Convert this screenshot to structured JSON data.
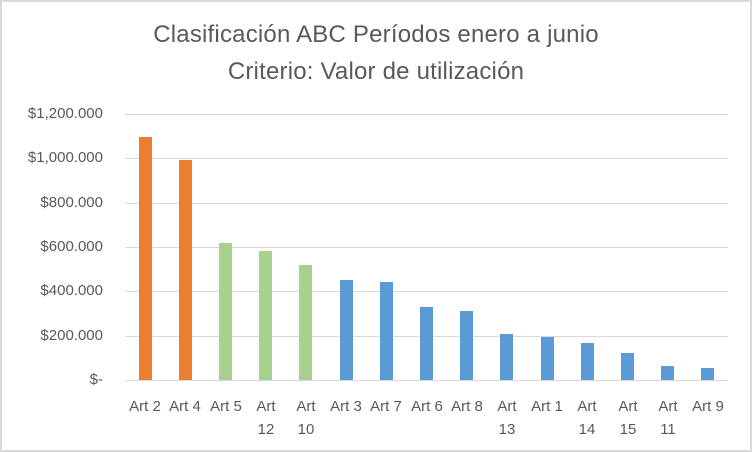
{
  "chart_data": {
    "type": "bar",
    "title": "Clasificación ABC Períodos enero a junio",
    "subtitle": "Criterio: Valor de utilización",
    "xlabel": "",
    "ylabel": "",
    "ylim": [
      0,
      1200000
    ],
    "grid": true,
    "legend": null,
    "yticks": [
      "$1,200.000",
      "$1,000.000",
      "$800.000",
      "$600.000",
      "$400.000",
      "$200.000",
      "$-"
    ],
    "categories": [
      "Art 2",
      "Art 4",
      "Art 5",
      "Art 12",
      "Art 10",
      "Art 3",
      "Art 7",
      "Art 6",
      "Art 8",
      "Art 13",
      "Art 1",
      "Art 14",
      "Art 15",
      "Art 11",
      "Art 9"
    ],
    "values": [
      1097000,
      993000,
      618000,
      582000,
      519000,
      451000,
      442000,
      330000,
      311000,
      207000,
      194000,
      167000,
      122000,
      63000,
      54000
    ],
    "classes": [
      "A",
      "A",
      "B",
      "B",
      "B",
      "C",
      "C",
      "C",
      "C",
      "C",
      "C",
      "C",
      "C",
      "C",
      "C"
    ],
    "class_colors": {
      "A": "#ED7D31",
      "B": "#A9D18E",
      "C": "#5B9BD5"
    }
  },
  "title": {
    "line1": "Clasificación ABC Períodos enero a junio",
    "line2": "Criterio: Valor de utilización"
  },
  "yaxis": {
    "ticks": [
      "$1,200.000",
      "$1,000.000",
      "$800.000",
      "$600.000",
      "$400.000",
      "$200.000",
      "$-"
    ]
  },
  "xaxis": {
    "labels": [
      "Art 2",
      "Art 4",
      "Art 5",
      "Art\n12",
      "Art\n10",
      "Art 3",
      "Art 7",
      "Art 6",
      "Art 8",
      "Art\n13",
      "Art 1",
      "Art\n14",
      "Art\n15",
      "Art\n11",
      "Art 9"
    ]
  }
}
